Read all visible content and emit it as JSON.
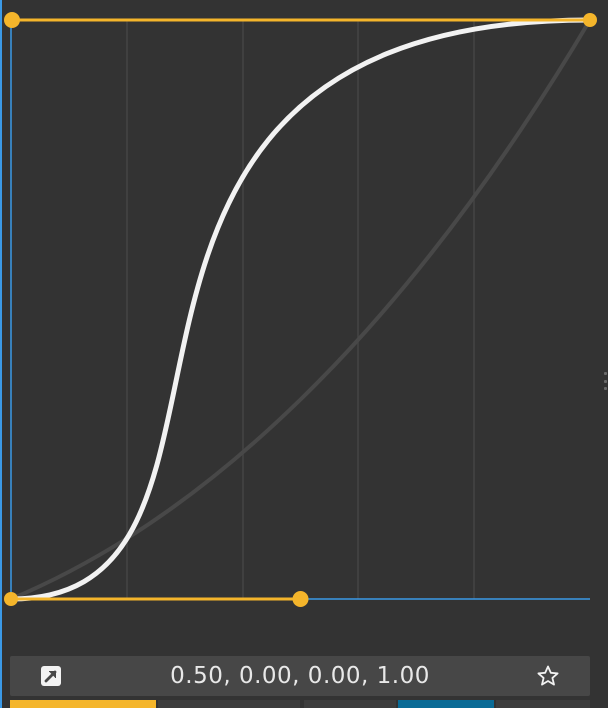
{
  "editor": {
    "value_display": "0.50, 0.00, 0.00, 1.00",
    "bezier": [
      0.5,
      0.0,
      0.0,
      1.0
    ]
  },
  "icons": {
    "apply": "arrow-up-right-icon",
    "favorite": "star-icon"
  },
  "colors": {
    "background": "#333333",
    "grid": "#444444",
    "handle": "#f4b52b",
    "curve": "#f2f2f2",
    "reference_curve": "#4a4a4a",
    "frame": "#3b9ae8",
    "value_bar": "#474747",
    "preset_active": "#f4b52b",
    "preset_blue": "#0a6b96",
    "preset_default": "#3d3d3d"
  },
  "presets": [
    {
      "name": "preset-1",
      "active": true
    },
    {
      "name": "preset-2",
      "active": false
    },
    {
      "name": "preset-3",
      "active": false
    },
    {
      "name": "preset-4",
      "active": false,
      "accent": true
    },
    {
      "name": "preset-5",
      "active": false
    }
  ]
}
